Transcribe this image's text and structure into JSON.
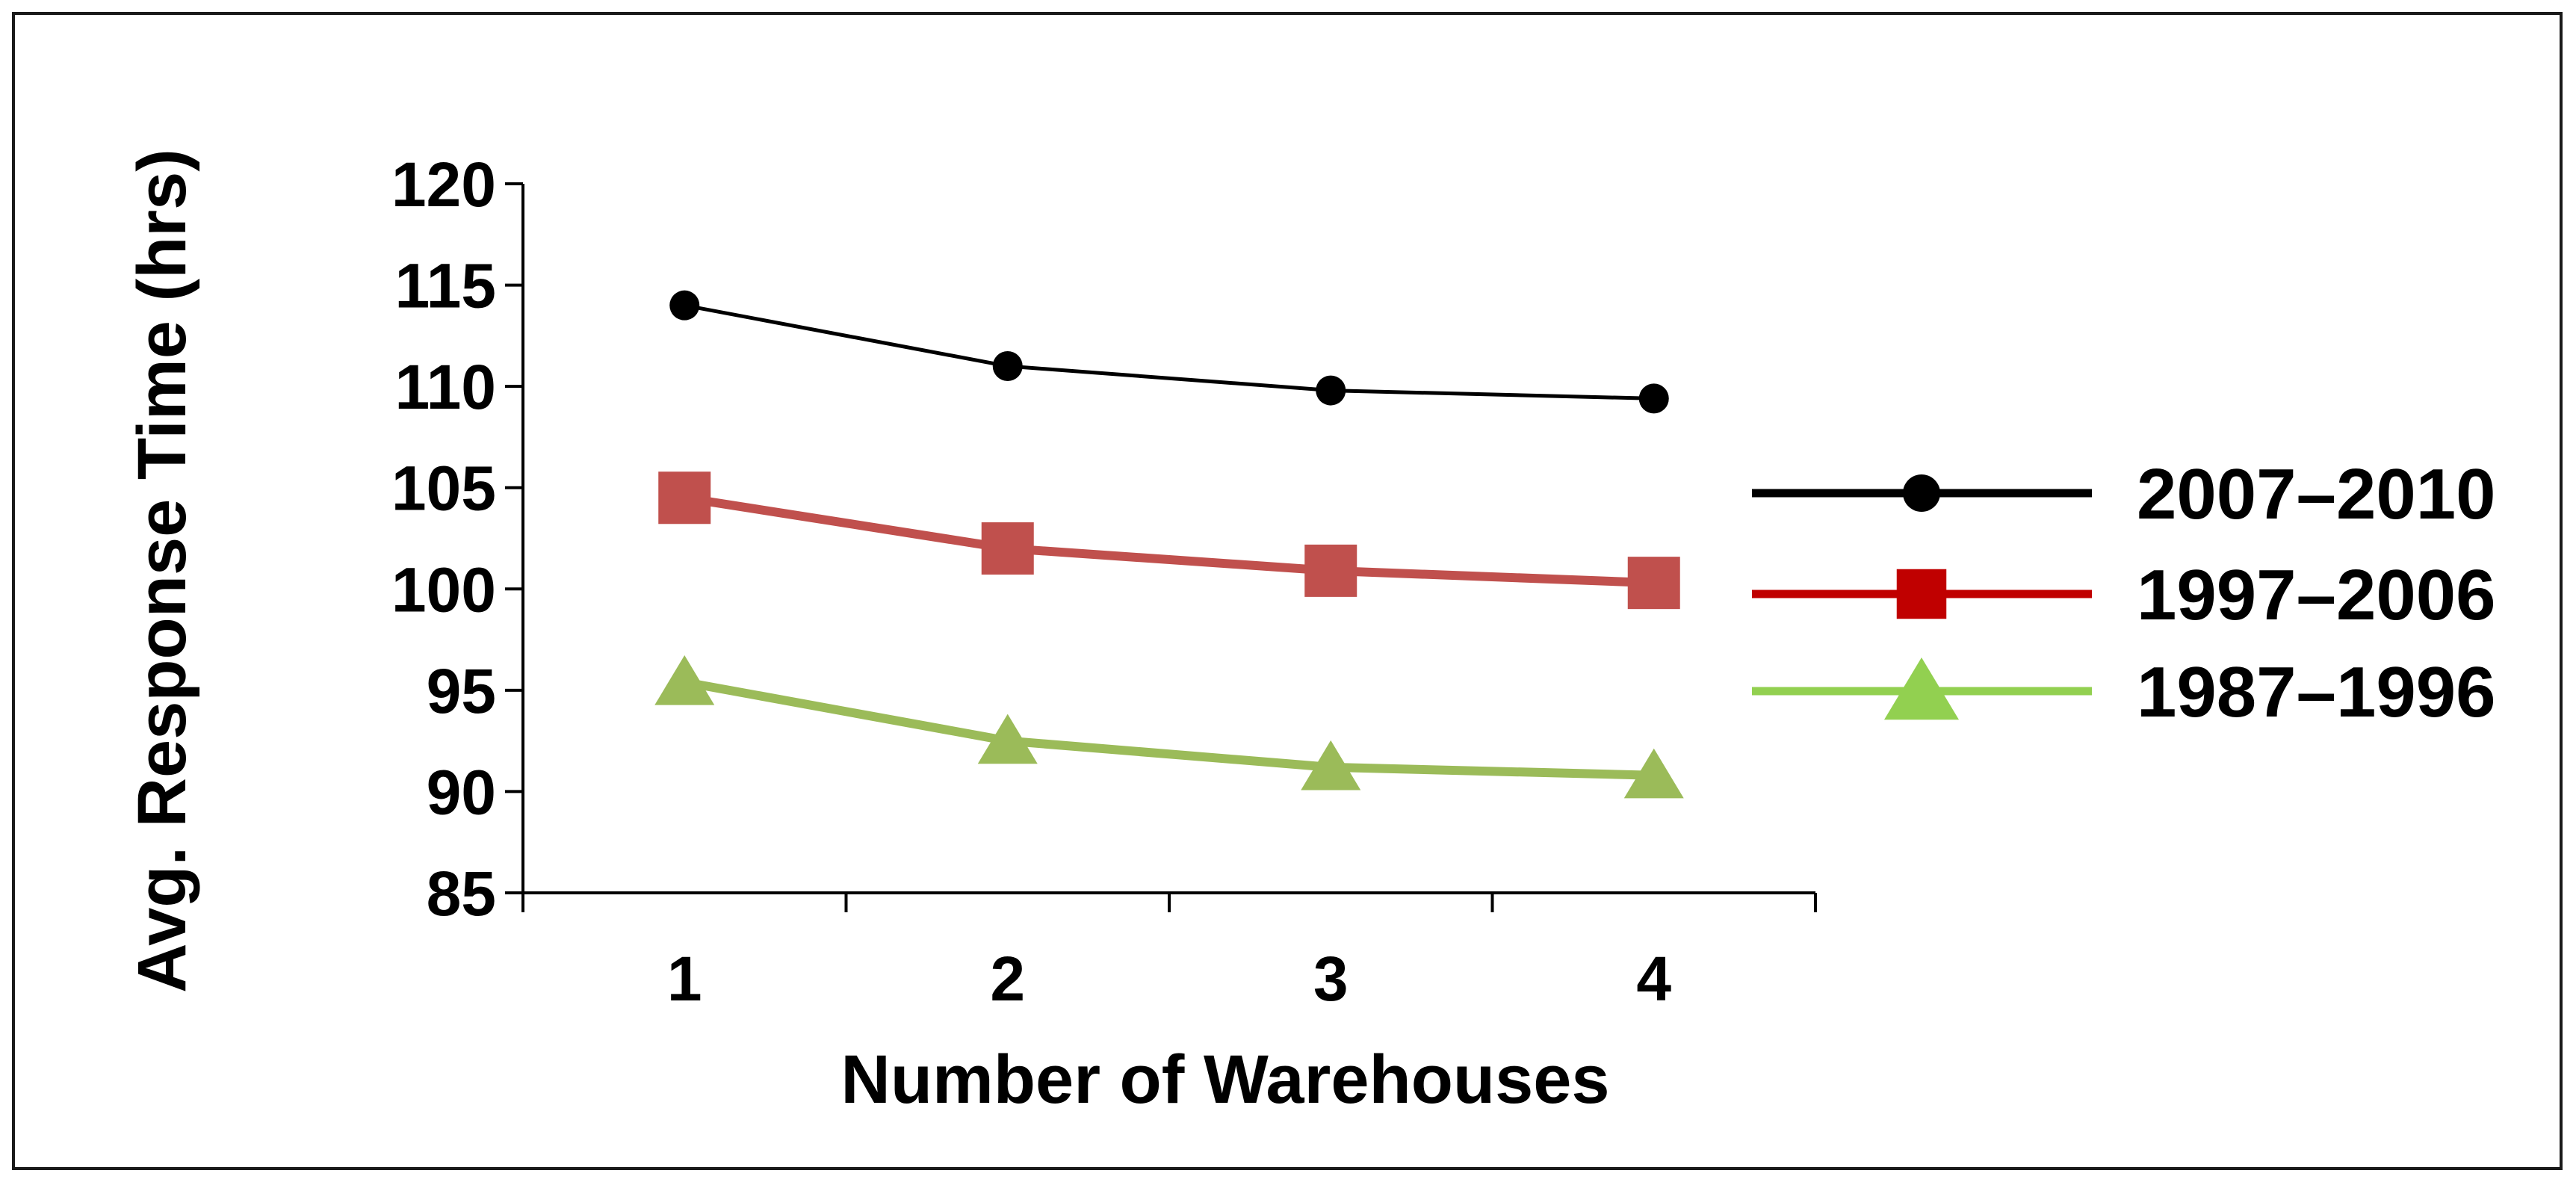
{
  "chart_data": {
    "type": "line",
    "title": "",
    "xlabel": "Number of Warehouses",
    "ylabel": "Avg. Response Time (hrs)",
    "x": [
      1,
      2,
      3,
      4
    ],
    "x_tick_labels": [
      "1",
      "2",
      "3",
      "4"
    ],
    "ylim": [
      85,
      120
    ],
    "y_ticks": [
      85,
      90,
      95,
      100,
      105,
      110,
      115,
      120
    ],
    "y_tick_labels": [
      "85",
      "90",
      "95",
      "100",
      "105",
      "110",
      "115",
      "120"
    ],
    "grid": false,
    "legend_position": "right",
    "series": [
      {
        "name": "2007–2010",
        "values": [
          114.0,
          111.0,
          109.8,
          109.4
        ],
        "color": "#000000",
        "marker": "circle"
      },
      {
        "name": "1997–2006",
        "values": [
          104.5,
          102.0,
          100.9,
          100.3
        ],
        "color": "#C0504D",
        "legend_color": "#C00000",
        "marker": "square"
      },
      {
        "name": "1987–1996",
        "values": [
          95.4,
          92.5,
          91.2,
          90.8
        ],
        "color": "#9BBB59",
        "legend_color": "#92D050",
        "marker": "triangle"
      }
    ]
  }
}
